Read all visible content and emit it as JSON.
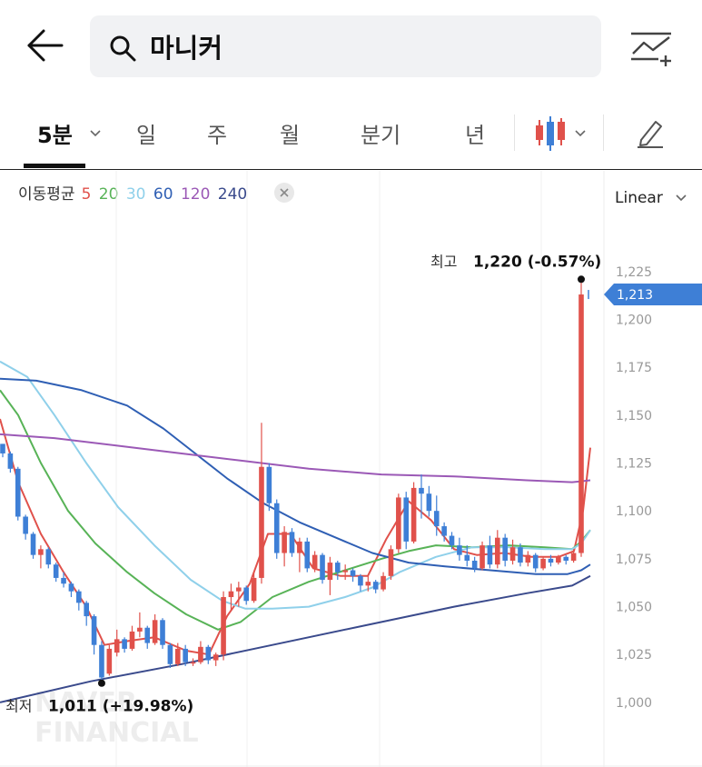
{
  "search": {
    "value": "마니커"
  },
  "tabs": [
    {
      "label": "5분",
      "active": true
    },
    {
      "label": "일"
    },
    {
      "label": "주"
    },
    {
      "label": "월"
    },
    {
      "label": "분기"
    },
    {
      "label": "년"
    }
  ],
  "legend": {
    "label": "이동평균",
    "periods": [
      {
        "value": "5",
        "color": "#e0514b"
      },
      {
        "value": "20",
        "color": "#58b357"
      },
      {
        "value": "30",
        "color": "#8fd0ea"
      },
      {
        "value": "60",
        "color": "#2f5fb4"
      },
      {
        "value": "120",
        "color": "#9b59b6"
      },
      {
        "value": "240",
        "color": "#3a4a8c"
      }
    ]
  },
  "scale_mode": "Linear",
  "annotations": {
    "high_label": "최고",
    "high_value": "1,220 (-0.57%)",
    "low_label": "최저",
    "low_value": "1,011 (+19.98%)",
    "current_price": "1,213"
  },
  "watermark": [
    "NAVER",
    "FINANCIAL"
  ],
  "colors": {
    "up": "#e0514b",
    "down": "#3e7fd6",
    "accent": "#3e7fd6"
  },
  "chart_data": {
    "type": "candlestick",
    "ylim": [
      990,
      1232
    ],
    "yticks": [
      1225,
      1200,
      1175,
      1150,
      1125,
      1100,
      1075,
      1050,
      1025,
      1000
    ],
    "ytick_labels": [
      "1,225",
      "1,200",
      "1,175",
      "1,150",
      "1,125",
      "1,100",
      "1,075",
      "1,050",
      "1,025",
      "1,000"
    ],
    "candles": [
      [
        1135,
        1135,
        1128,
        1130
      ],
      [
        1130,
        1131,
        1120,
        1122
      ],
      [
        1122,
        1123,
        1095,
        1097
      ],
      [
        1097,
        1098,
        1085,
        1088
      ],
      [
        1088,
        1089,
        1075,
        1077
      ],
      [
        1077,
        1082,
        1070,
        1080
      ],
      [
        1080,
        1081,
        1070,
        1072
      ],
      [
        1072,
        1073,
        1063,
        1065
      ],
      [
        1065,
        1068,
        1060,
        1062
      ],
      [
        1062,
        1063,
        1055,
        1058
      ],
      [
        1058,
        1059,
        1048,
        1052
      ],
      [
        1052,
        1053,
        1040,
        1045
      ],
      [
        1045,
        1046,
        1025,
        1030
      ],
      [
        1030,
        1032,
        1011,
        1013
      ],
      [
        1015,
        1030,
        1014,
        1028
      ],
      [
        1026,
        1038,
        1024,
        1033
      ],
      [
        1033,
        1034,
        1026,
        1028
      ],
      [
        1028,
        1040,
        1027,
        1037
      ],
      [
        1037,
        1047,
        1034,
        1039
      ],
      [
        1039,
        1040,
        1028,
        1031
      ],
      [
        1031,
        1046,
        1030,
        1043
      ],
      [
        1043,
        1044,
        1028,
        1030
      ],
      [
        1030,
        1031,
        1018,
        1020
      ],
      [
        1020,
        1031,
        1019,
        1028
      ],
      [
        1028,
        1030,
        1019,
        1021
      ],
      [
        1021,
        1023,
        1019,
        1021
      ],
      [
        1021,
        1032,
        1020,
        1029
      ],
      [
        1029,
        1030,
        1020,
        1022
      ],
      [
        1022,
        1026,
        1019,
        1025
      ],
      [
        1025,
        1058,
        1022,
        1055
      ],
      [
        1055,
        1062,
        1048,
        1058
      ],
      [
        1058,
        1063,
        1050,
        1060
      ],
      [
        1060,
        1061,
        1051,
        1053
      ],
      [
        1053,
        1068,
        1052,
        1065
      ],
      [
        1065,
        1146,
        1062,
        1123
      ],
      [
        1123,
        1125,
        1100,
        1104
      ],
      [
        1104,
        1106,
        1075,
        1078
      ],
      [
        1078,
        1092,
        1071,
        1089
      ],
      [
        1089,
        1091,
        1076,
        1078
      ],
      [
        1078,
        1086,
        1068,
        1084
      ],
      [
        1084,
        1086,
        1068,
        1070
      ],
      [
        1070,
        1079,
        1068,
        1077
      ],
      [
        1077,
        1078,
        1062,
        1064
      ],
      [
        1064,
        1076,
        1056,
        1073
      ],
      [
        1073,
        1074,
        1064,
        1068
      ],
      [
        1068,
        1072,
        1064,
        1069
      ],
      [
        1069,
        1070,
        1063,
        1066
      ],
      [
        1066,
        1067,
        1058,
        1061
      ],
      [
        1061,
        1066,
        1058,
        1063
      ],
      [
        1063,
        1064,
        1057,
        1059
      ],
      [
        1059,
        1068,
        1058,
        1066
      ],
      [
        1066,
        1082,
        1064,
        1080
      ],
      [
        1080,
        1109,
        1078,
        1107
      ],
      [
        1107,
        1110,
        1080,
        1084
      ],
      [
        1084,
        1115,
        1083,
        1112
      ],
      [
        1112,
        1119,
        1096,
        1109
      ],
      [
        1109,
        1113,
        1097,
        1100
      ],
      [
        1100,
        1108,
        1087,
        1092
      ],
      [
        1092,
        1094,
        1084,
        1087
      ],
      [
        1087,
        1089,
        1080,
        1082
      ],
      [
        1082,
        1086,
        1074,
        1077
      ],
      [
        1077,
        1082,
        1071,
        1074
      ],
      [
        1074,
        1076,
        1068,
        1070
      ],
      [
        1070,
        1084,
        1069,
        1082
      ],
      [
        1082,
        1087,
        1070,
        1072
      ],
      [
        1072,
        1090,
        1070,
        1086
      ],
      [
        1086,
        1088,
        1071,
        1074
      ],
      [
        1074,
        1085,
        1072,
        1081
      ],
      [
        1081,
        1083,
        1071,
        1073
      ],
      [
        1073,
        1079,
        1071,
        1077
      ],
      [
        1077,
        1078,
        1068,
        1070
      ],
      [
        1070,
        1076,
        1069,
        1075
      ],
      [
        1075,
        1077,
        1071,
        1073
      ],
      [
        1073,
        1077,
        1072,
        1076
      ],
      [
        1076,
        1077,
        1072,
        1074
      ],
      [
        1074,
        1080,
        1073,
        1078
      ],
      [
        1078,
        1220,
        1076,
        1213
      ]
    ],
    "ma": [
      {
        "period": "5",
        "color": "#e0514b",
        "points": [
          [
            0,
            1148
          ],
          [
            20,
            1115
          ],
          [
            45,
            1088
          ],
          [
            70,
            1068
          ],
          [
            95,
            1050
          ],
          [
            115,
            1030
          ],
          [
            140,
            1032
          ],
          [
            170,
            1034
          ],
          [
            205,
            1027
          ],
          [
            230,
            1025
          ],
          [
            250,
            1045
          ],
          [
            275,
            1062
          ],
          [
            295,
            1088
          ],
          [
            320,
            1088
          ],
          [
            345,
            1070
          ],
          [
            375,
            1066
          ],
          [
            405,
            1066
          ],
          [
            425,
            1085
          ],
          [
            450,
            1105
          ],
          [
            475,
            1095
          ],
          [
            500,
            1080
          ],
          [
            525,
            1077
          ],
          [
            555,
            1078
          ],
          [
            585,
            1076
          ],
          [
            615,
            1076
          ],
          [
            632,
            1079
          ],
          [
            642,
            1100
          ],
          [
            650,
            1133
          ]
        ]
      },
      {
        "period": "20",
        "color": "#58b357",
        "points": [
          [
            0,
            1163
          ],
          [
            20,
            1150
          ],
          [
            45,
            1125
          ],
          [
            75,
            1100
          ],
          [
            105,
            1083
          ],
          [
            140,
            1068
          ],
          [
            170,
            1057
          ],
          [
            205,
            1046
          ],
          [
            240,
            1038
          ],
          [
            265,
            1042
          ],
          [
            300,
            1055
          ],
          [
            340,
            1063
          ],
          [
            380,
            1069
          ],
          [
            420,
            1075
          ],
          [
            450,
            1079
          ],
          [
            480,
            1082
          ],
          [
            520,
            1081
          ],
          [
            560,
            1082
          ],
          [
            600,
            1081
          ],
          [
            630,
            1080
          ],
          [
            640,
            1084
          ],
          [
            650,
            1090
          ]
        ]
      },
      {
        "period": "30",
        "color": "#8fd0ea",
        "points": [
          [
            0,
            1178
          ],
          [
            30,
            1170
          ],
          [
            60,
            1150
          ],
          [
            95,
            1125
          ],
          [
            130,
            1102
          ],
          [
            170,
            1082
          ],
          [
            210,
            1064
          ],
          [
            245,
            1053
          ],
          [
            270,
            1049
          ],
          [
            300,
            1049
          ],
          [
            340,
            1050
          ],
          [
            380,
            1055
          ],
          [
            410,
            1060
          ],
          [
            440,
            1068
          ],
          [
            480,
            1076
          ],
          [
            520,
            1081
          ],
          [
            560,
            1081
          ],
          [
            600,
            1080
          ],
          [
            630,
            1080
          ],
          [
            640,
            1083
          ],
          [
            650,
            1090
          ]
        ]
      },
      {
        "period": "60",
        "color": "#2f5fb4",
        "points": [
          [
            0,
            1169
          ],
          [
            40,
            1168
          ],
          [
            90,
            1163
          ],
          [
            140,
            1155
          ],
          [
            180,
            1143
          ],
          [
            215,
            1130
          ],
          [
            250,
            1117
          ],
          [
            290,
            1104
          ],
          [
            330,
            1094
          ],
          [
            370,
            1086
          ],
          [
            410,
            1078
          ],
          [
            450,
            1073
          ],
          [
            490,
            1071
          ],
          [
            540,
            1069
          ],
          [
            590,
            1067
          ],
          [
            625,
            1067
          ],
          [
            640,
            1069
          ],
          [
            650,
            1072
          ]
        ]
      },
      {
        "period": "120",
        "color": "#9b59b6",
        "points": [
          [
            0,
            1140
          ],
          [
            60,
            1138
          ],
          [
            130,
            1134
          ],
          [
            200,
            1130
          ],
          [
            270,
            1126
          ],
          [
            340,
            1122
          ],
          [
            420,
            1119
          ],
          [
            500,
            1118
          ],
          [
            580,
            1116
          ],
          [
            630,
            1115
          ],
          [
            650,
            1116
          ]
        ]
      },
      {
        "period": "240",
        "color": "#3a4a8c",
        "points": [
          [
            0,
            1000
          ],
          [
            100,
            1011
          ],
          [
            200,
            1020
          ],
          [
            300,
            1030
          ],
          [
            400,
            1040
          ],
          [
            500,
            1050
          ],
          [
            580,
            1057
          ],
          [
            630,
            1061
          ],
          [
            650,
            1066
          ]
        ]
      }
    ]
  }
}
